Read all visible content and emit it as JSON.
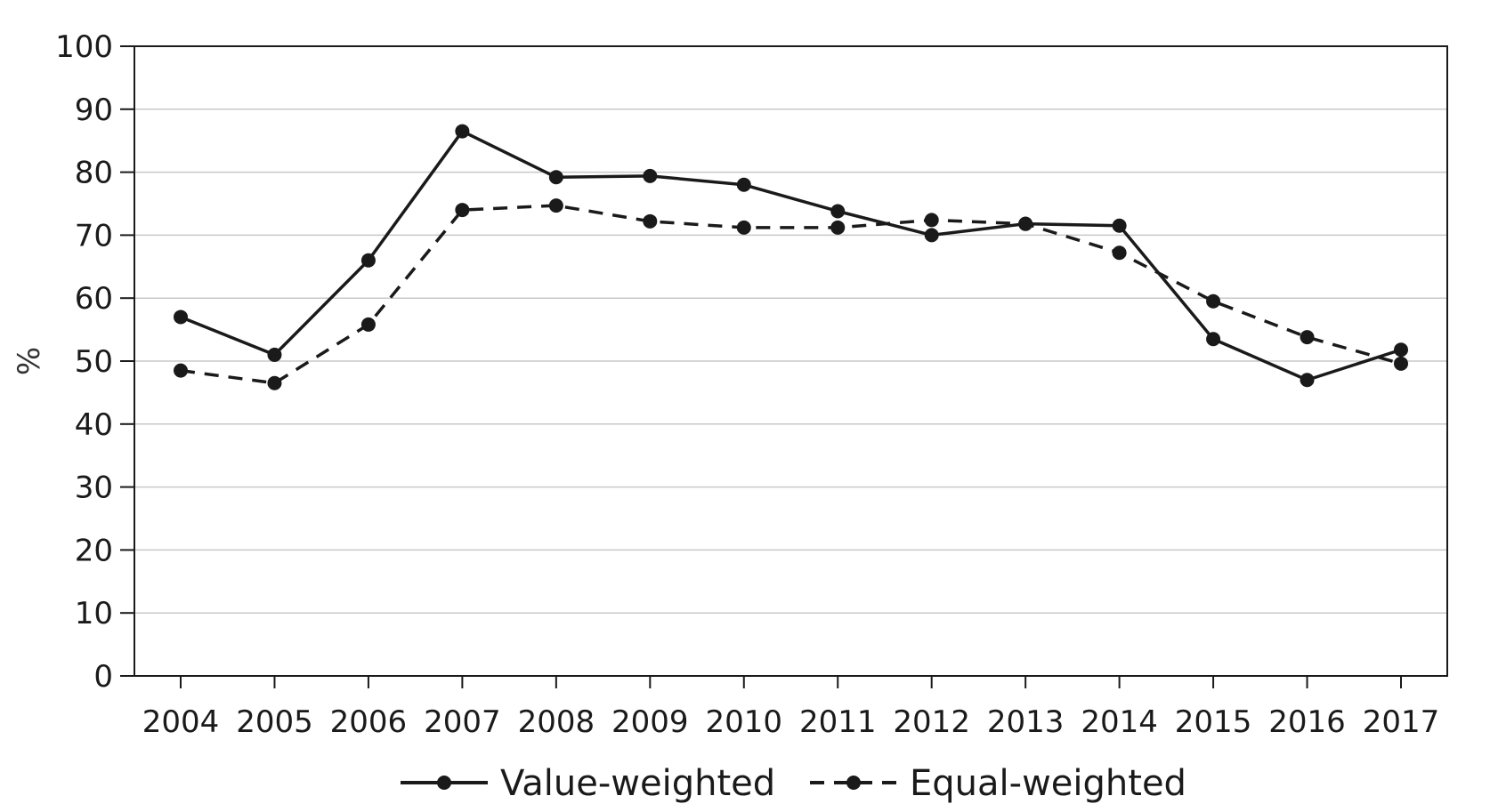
{
  "chart_data": {
    "type": "line",
    "title": "",
    "xlabel": "",
    "ylabel": "%",
    "ylim": [
      0,
      100
    ],
    "yticks": [
      "0",
      "10",
      "20",
      "30",
      "40",
      "50",
      "60",
      "70",
      "80",
      "90",
      "100"
    ],
    "categories": [
      "2004",
      "2005",
      "2006",
      "2007",
      "2008",
      "2009",
      "2010",
      "2011",
      "2012",
      "2013",
      "2014",
      "2015",
      "2016",
      "2017"
    ],
    "grid": true,
    "legend_position": "bottom",
    "series": [
      {
        "name": "Value-weighted",
        "line_style": "solid",
        "color": "#1a1a1a",
        "values": [
          57.0,
          51.0,
          66.0,
          86.5,
          79.2,
          79.4,
          78.0,
          73.8,
          70.0,
          71.8,
          71.5,
          53.5,
          47.0,
          51.8
        ]
      },
      {
        "name": "Equal-weighted",
        "line_style": "dashed",
        "color": "#1a1a1a",
        "values": [
          48.5,
          46.5,
          55.8,
          74.0,
          74.7,
          72.2,
          71.2,
          71.2,
          72.4,
          71.8,
          67.2,
          59.5,
          53.8,
          49.6
        ]
      }
    ]
  }
}
